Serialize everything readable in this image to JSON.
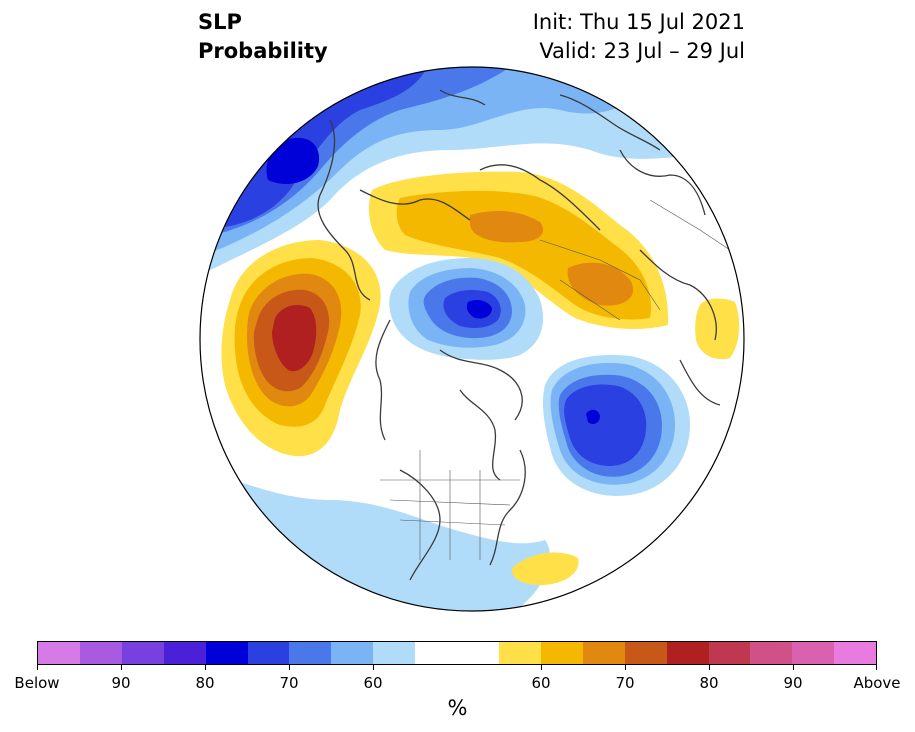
{
  "title": {
    "variable": "SLP",
    "product": "Probability",
    "init": "Init: Thu 15 Jul 2021",
    "valid": "Valid: 23 Jul – 29 Jul"
  },
  "colorbar": {
    "unit": "%",
    "colors": [
      "#d67ae8",
      "#a85be0",
      "#7840e0",
      "#4a20d8",
      "#0000d8",
      "#2a40e0",
      "#4a78ea",
      "#7ab4f4",
      "#b0dcfa",
      "#ffffff",
      "#ffffff",
      "#ffe048",
      "#f4b800",
      "#e08810",
      "#c85818",
      "#b02020",
      "#c03850",
      "#d05088",
      "#da60b0",
      "#e87ae0"
    ],
    "tick_labels": [
      {
        "text": "Below",
        "index": 0
      },
      {
        "text": "90",
        "index": 2
      },
      {
        "text": "80",
        "index": 4
      },
      {
        "text": "70",
        "index": 6
      },
      {
        "text": "60",
        "index": 8
      },
      {
        "text": "60",
        "index": 12
      },
      {
        "text": "70",
        "index": 14
      },
      {
        "text": "80",
        "index": 16
      },
      {
        "text": "90",
        "index": 18
      },
      {
        "text": "Above",
        "index": 20
      }
    ]
  },
  "map": {
    "projection": "north-polar-stereographic",
    "background_color": "#ffffff",
    "coastline_color": "#3a3a3a",
    "boundary_color": "#555555"
  }
}
